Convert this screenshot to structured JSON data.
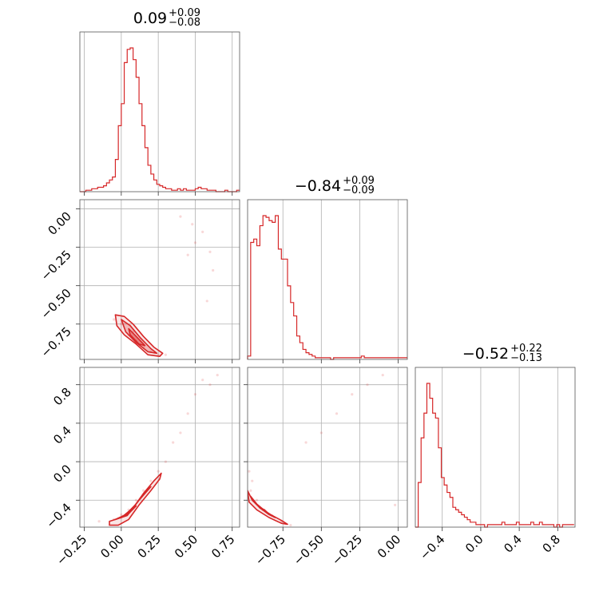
{
  "chart_data": {
    "type": "corner",
    "colors": {
      "main": "#d62728",
      "frame": "#555555",
      "grid": "#b0b0b0"
    },
    "grid": true,
    "parameters": [
      {
        "id": "p0",
        "range": [
          -0.28,
          0.8
        ],
        "ticks": [
          -0.25,
          0.0,
          0.25,
          0.5,
          0.75
        ],
        "tick_labels": [
          "−0.25",
          "0.00",
          "0.25",
          "0.50",
          "0.75"
        ],
        "title": {
          "median": "0.09",
          "plus": "+0.09",
          "minus": "−0.08"
        }
      },
      {
        "id": "p1",
        "range": [
          -0.98,
          0.06
        ],
        "ticks": [
          -0.75,
          -0.5,
          -0.25,
          0.0
        ],
        "tick_labels": [
          "−0.75",
          "−0.50",
          "−0.25",
          "0.00"
        ],
        "title": {
          "median": "−0.84",
          "plus": "+0.09",
          "minus": "−0.09"
        }
      },
      {
        "id": "p2",
        "range": [
          -0.68,
          0.98
        ],
        "ticks": [
          -0.4,
          0.0,
          0.4,
          0.8
        ],
        "tick_labels": [
          "−0.4",
          "0.0",
          "0.4",
          "0.8"
        ],
        "title": {
          "median": "−0.52",
          "plus": "+0.22",
          "minus": "−0.13"
        }
      }
    ],
    "histograms": [
      {
        "param": "p0",
        "bin_width": 0.02,
        "edges_start": -0.28,
        "counts": [
          0,
          0,
          1,
          1,
          2,
          2,
          3,
          3,
          4,
          6,
          8,
          10,
          22,
          45,
          60,
          88,
          97,
          98,
          90,
          78,
          60,
          45,
          30,
          18,
          12,
          8,
          5,
          4,
          3,
          2,
          2,
          1,
          1,
          2,
          1,
          2,
          1,
          1,
          1,
          2,
          3,
          2,
          2,
          1,
          1,
          1,
          0,
          0,
          0,
          1,
          0,
          0,
          0,
          1
        ]
      },
      {
        "param": "p1",
        "bin_width": 0.02,
        "edges_start": -0.98,
        "counts": [
          2,
          70,
          72,
          68,
          80,
          86,
          85,
          83,
          82,
          86,
          66,
          60,
          60,
          44,
          34,
          26,
          14,
          10,
          6,
          4,
          3,
          2,
          1,
          1,
          1,
          1,
          1,
          0,
          1,
          1,
          1,
          1,
          1,
          1,
          1,
          1,
          1,
          2,
          1,
          1,
          1,
          1,
          1,
          1,
          1,
          1,
          1,
          1,
          1,
          1,
          1,
          1
        ]
      },
      {
        "param": "p2",
        "bin_width": 0.03,
        "edges_start": -0.68,
        "counts": [
          0,
          18,
          36,
          46,
          58,
          52,
          46,
          44,
          32,
          20,
          17,
          14,
          12,
          8,
          7,
          6,
          5,
          4,
          3,
          2,
          2,
          1,
          1,
          1,
          0,
          1,
          1,
          1,
          1,
          1,
          2,
          1,
          1,
          1,
          1,
          2,
          1,
          1,
          1,
          1,
          2,
          1,
          1,
          2,
          1,
          1,
          1,
          1,
          0,
          1,
          0,
          1,
          1,
          1,
          1
        ]
      }
    ],
    "scatter_panels": [
      {
        "x": "p0",
        "y": "p1",
        "samples": [
          [
            0.0,
            -0.75
          ],
          [
            0.05,
            -0.82
          ],
          [
            0.1,
            -0.86
          ],
          [
            0.15,
            -0.9
          ],
          [
            0.2,
            -0.93
          ],
          [
            0.25,
            -0.95
          ],
          [
            -0.05,
            -0.72
          ],
          [
            0.08,
            -0.8
          ],
          [
            0.45,
            -0.3
          ],
          [
            0.5,
            -0.22
          ],
          [
            0.55,
            -0.15
          ],
          [
            0.58,
            -0.6
          ],
          [
            0.6,
            -0.28
          ],
          [
            0.62,
            -0.4
          ],
          [
            0.48,
            -0.1
          ],
          [
            0.4,
            -0.05
          ],
          [
            0.3,
            -0.95
          ]
        ],
        "contours": [
          [
            [
              -0.04,
              -0.69
            ],
            [
              0.02,
              -0.7
            ],
            [
              0.08,
              -0.75
            ],
            [
              0.15,
              -0.83
            ],
            [
              0.22,
              -0.9
            ],
            [
              0.28,
              -0.94
            ],
            [
              0.26,
              -0.96
            ],
            [
              0.18,
              -0.95
            ],
            [
              0.1,
              -0.88
            ],
            [
              0.02,
              -0.82
            ],
            [
              -0.03,
              -0.76
            ]
          ],
          [
            [
              0.0,
              -0.72
            ],
            [
              0.06,
              -0.76
            ],
            [
              0.13,
              -0.84
            ],
            [
              0.2,
              -0.91
            ],
            [
              0.24,
              -0.94
            ],
            [
              0.18,
              -0.93
            ],
            [
              0.1,
              -0.87
            ],
            [
              0.03,
              -0.8
            ]
          ],
          [
            [
              0.05,
              -0.78
            ],
            [
              0.1,
              -0.83
            ],
            [
              0.16,
              -0.89
            ],
            [
              0.12,
              -0.88
            ],
            [
              0.06,
              -0.82
            ]
          ]
        ]
      },
      {
        "x": "p0",
        "y": "p2",
        "samples": [
          [
            -0.05,
            -0.6
          ],
          [
            0.0,
            -0.55
          ],
          [
            0.05,
            -0.5
          ],
          [
            0.1,
            -0.4
          ],
          [
            0.15,
            -0.3
          ],
          [
            0.2,
            -0.2
          ],
          [
            0.25,
            -0.1
          ],
          [
            0.3,
            0.0
          ],
          [
            0.4,
            0.3
          ],
          [
            0.45,
            0.5
          ],
          [
            0.5,
            0.7
          ],
          [
            0.55,
            0.85
          ],
          [
            0.6,
            0.8
          ],
          [
            0.65,
            0.9
          ],
          [
            -0.15,
            -0.62
          ],
          [
            0.35,
            0.2
          ]
        ],
        "contours": [
          [
            [
              -0.08,
              -0.62
            ],
            [
              0.0,
              -0.58
            ],
            [
              0.08,
              -0.48
            ],
            [
              0.15,
              -0.33
            ],
            [
              0.22,
              -0.2
            ],
            [
              0.27,
              -0.12
            ],
            [
              0.26,
              -0.18
            ],
            [
              0.2,
              -0.3
            ],
            [
              0.12,
              -0.45
            ],
            [
              0.05,
              -0.6
            ],
            [
              -0.02,
              -0.66
            ],
            [
              -0.08,
              -0.66
            ]
          ],
          [
            [
              -0.04,
              -0.6
            ],
            [
              0.03,
              -0.55
            ],
            [
              0.1,
              -0.44
            ],
            [
              0.17,
              -0.3
            ],
            [
              0.2,
              -0.26
            ],
            [
              0.12,
              -0.4
            ],
            [
              0.04,
              -0.56
            ]
          ],
          [
            [
              0.0,
              -0.58
            ],
            [
              0.06,
              -0.52
            ],
            [
              0.1,
              -0.46
            ],
            [
              0.05,
              -0.54
            ]
          ]
        ]
      },
      {
        "x": "p1",
        "y": "p2",
        "samples": [
          [
            -0.95,
            -0.2
          ],
          [
            -0.97,
            -0.1
          ],
          [
            -0.96,
            -0.3
          ],
          [
            -0.92,
            -0.4
          ],
          [
            -0.88,
            -0.5
          ],
          [
            -0.82,
            -0.56
          ],
          [
            -0.76,
            -0.62
          ],
          [
            -0.7,
            -0.66
          ],
          [
            -0.5,
            0.3
          ],
          [
            -0.4,
            0.5
          ],
          [
            -0.3,
            0.7
          ],
          [
            -0.2,
            0.8
          ],
          [
            -0.1,
            0.9
          ],
          [
            -0.6,
            0.2
          ],
          [
            -0.02,
            -0.45
          ]
        ],
        "contours": [
          [
            [
              -0.98,
              -0.3
            ],
            [
              -0.95,
              -0.4
            ],
            [
              -0.9,
              -0.48
            ],
            [
              -0.83,
              -0.55
            ],
            [
              -0.76,
              -0.61
            ],
            [
              -0.72,
              -0.65
            ],
            [
              -0.76,
              -0.64
            ],
            [
              -0.84,
              -0.58
            ],
            [
              -0.92,
              -0.5
            ],
            [
              -0.97,
              -0.42
            ]
          ],
          [
            [
              -0.96,
              -0.36
            ],
            [
              -0.92,
              -0.44
            ],
            [
              -0.86,
              -0.52
            ],
            [
              -0.8,
              -0.58
            ],
            [
              -0.84,
              -0.55
            ],
            [
              -0.9,
              -0.48
            ]
          ],
          [
            [
              -0.9,
              -0.48
            ],
            [
              -0.85,
              -0.53
            ],
            [
              -0.87,
              -0.5
            ]
          ]
        ]
      }
    ]
  }
}
